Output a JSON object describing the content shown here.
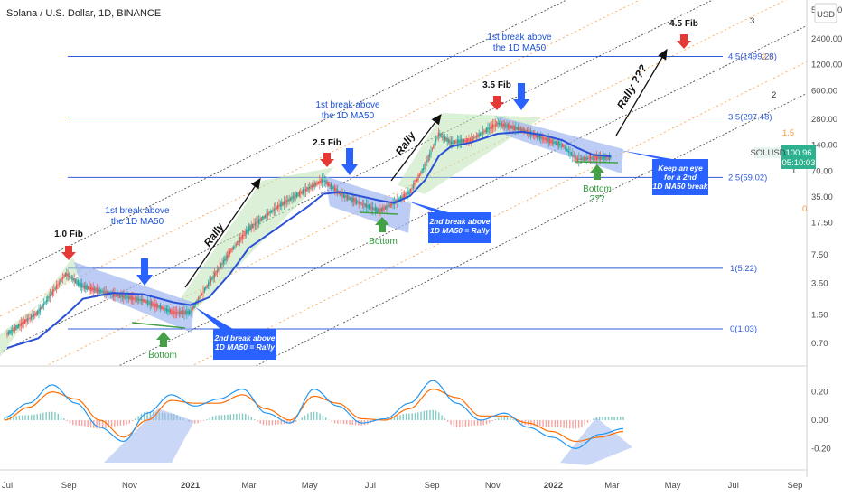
{
  "title": "Solana / U.S. Dollar, 1D, BINANCE",
  "currency": "USD",
  "colors": {
    "up": "#26a69a",
    "down": "#ef5350",
    "ma50": "#2b52d6",
    "fib": "#2f5bd8",
    "channel_orange": "#f29a3a",
    "channel_black": "#333333",
    "blue_zone": "#9fb6ef",
    "green_zone": "#bfe3b7",
    "callout": "#2962ff",
    "red_arrow": "#e53935",
    "green_arrow": "#43a047"
  },
  "chart_data": [
    {
      "type": "line",
      "name": "price",
      "y_scale": "log",
      "ylim": [
        0.5,
        5200
      ],
      "y_ticks": [
        "5200.00",
        "2400.00",
        "1200.00",
        "600.00",
        "280.00",
        "140.00",
        "70.00",
        "35.00",
        "17.50",
        "7.50",
        "3.50",
        "1.50",
        "0.70"
      ],
      "x_ticks": [
        "Jul",
        "Sep",
        "Nov",
        "2021",
        "Mar",
        "May",
        "Jul",
        "Sep",
        "Nov",
        "2022",
        "Mar",
        "May",
        "Jul",
        "Sep"
      ],
      "x": [
        "2020-07-01",
        "2020-08-01",
        "2020-08-29",
        "2020-09-15",
        "2020-10-15",
        "2020-11-15",
        "2020-12-15",
        "2021-01-01",
        "2021-01-20",
        "2021-02-10",
        "2021-03-01",
        "2021-04-01",
        "2021-05-01",
        "2021-05-15",
        "2021-06-01",
        "2021-06-20",
        "2021-07-10",
        "2021-07-25",
        "2021-08-10",
        "2021-08-25",
        "2021-09-08",
        "2021-09-20",
        "2021-10-10",
        "2021-11-06",
        "2021-12-01",
        "2021-12-20",
        "2022-01-10",
        "2022-01-25",
        "2022-02-10",
        "2022-02-28"
      ],
      "series": [
        {
          "name": "SOLUSD",
          "values": [
            0.9,
            1.6,
            4.5,
            3.2,
            2.6,
            2.2,
            1.6,
            1.6,
            3.5,
            8,
            15,
            28,
            45,
            55,
            38,
            30,
            24,
            30,
            40,
            80,
            190,
            150,
            160,
            250,
            210,
            170,
            140,
            95,
            100,
            101
          ]
        },
        {
          "name": "MA50",
          "values": [
            0.62,
            0.8,
            1.5,
            2.3,
            2.7,
            2.6,
            2.1,
            1.95,
            2.4,
            4.5,
            9,
            16,
            28,
            38,
            40,
            36,
            32,
            30,
            36,
            55,
            105,
            135,
            150,
            190,
            200,
            185,
            160,
            130,
            108,
            104
          ]
        }
      ],
      "fib_levels": [
        {
          "label": "0(1.03)",
          "value": 1.03
        },
        {
          "label": "1(5.22)",
          "value": 5.22
        },
        {
          "label": "2.5(59.02)",
          "value": 59.02
        },
        {
          "label": "3.5(297.48)",
          "value": 297.48
        },
        {
          "label": "4.5(1499.28)",
          "value": 1499.28
        }
      ],
      "channel_labels": [
        "3",
        "2.5",
        "2",
        "1.5",
        "1",
        "0"
      ],
      "price_label": "SOLUSD",
      "last_price": "100.96",
      "countdown": "05:10:03",
      "annotations": {
        "fib_1": "1.0 Fib",
        "fib_2_5": "2.5 Fib",
        "fib_3_5": "3.5 Fib",
        "fib_4_5": "4.5 Fib",
        "break_1": [
          "1st break above",
          "the 1D MA50"
        ],
        "break_2": [
          "1st break above",
          "the 1D MA50"
        ],
        "break_3": [
          "1st break above",
          "the 1D MA50"
        ],
        "rally": "Rally",
        "rally_q": "Rally ???",
        "bottom": "Bottom",
        "bottom_q": "???",
        "box_1": [
          "2nd break above",
          "1D MA50 = Rally"
        ],
        "box_2": [
          "2nd break above",
          "1D MA50 = Rally"
        ],
        "box_3": [
          "Keep an eye",
          "for a 2nd",
          "1D MA50 break"
        ]
      }
    },
    {
      "type": "line",
      "name": "macd",
      "y_ticks": [
        "0.20",
        "0.00",
        "-0.20"
      ],
      "series": [
        {
          "name": "MACD",
          "values": [
            0.02,
            0.12,
            0.25,
            0.12,
            -0.05,
            -0.15,
            0.05,
            0.18,
            0.1,
            0.15,
            0.22,
            0.05,
            -0.02,
            0.22,
            0.1,
            -0.02,
            0.01,
            0.12,
            0.28,
            0.12,
            0.0,
            0.05,
            -0.05,
            -0.12,
            -0.2,
            -0.1,
            -0.06
          ]
        },
        {
          "name": "Signal",
          "values": [
            0.0,
            0.09,
            0.2,
            0.15,
            0.0,
            -0.12,
            0.0,
            0.14,
            0.12,
            0.12,
            0.18,
            0.08,
            0.0,
            0.17,
            0.12,
            0.01,
            0.0,
            0.08,
            0.22,
            0.16,
            0.03,
            0.03,
            -0.02,
            -0.08,
            -0.15,
            -0.12,
            -0.08
          ]
        }
      ]
    }
  ]
}
